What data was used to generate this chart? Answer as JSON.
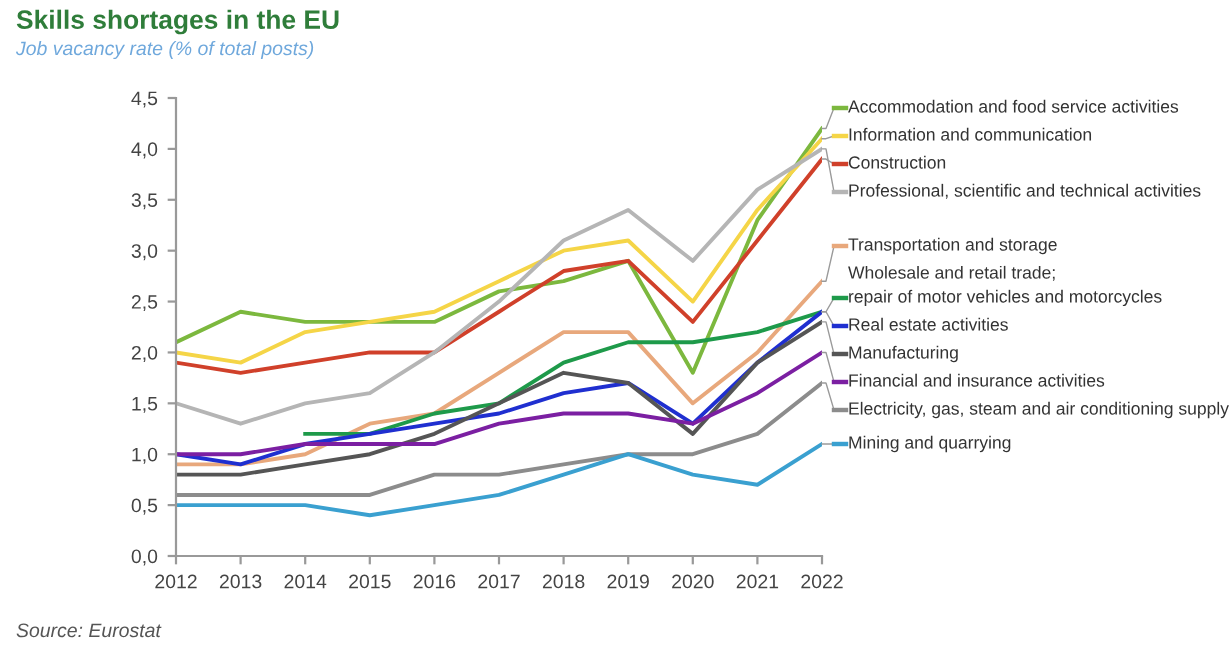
{
  "chart_data": {
    "type": "line",
    "title": "Skills shortages in the EU",
    "subtitle": "Job vacancy rate (% of total posts)",
    "categories": [
      "2012",
      "2013",
      "2014",
      "2015",
      "2016",
      "2017",
      "2018",
      "2019",
      "2020",
      "2021",
      "2022"
    ],
    "ylim": [
      0,
      4.5
    ],
    "yticks": [
      {
        "value": 0,
        "label": "0,0"
      },
      {
        "value": 0.5,
        "label": "0,5"
      },
      {
        "value": 1,
        "label": "1,0"
      },
      {
        "value": 1.5,
        "label": "1,5"
      },
      {
        "value": 2,
        "label": "2,0"
      },
      {
        "value": 2.5,
        "label": "2,5"
      },
      {
        "value": 3,
        "label": "3,0"
      },
      {
        "value": 3.5,
        "label": "3,5"
      },
      {
        "value": 4,
        "label": "4,0"
      },
      {
        "value": 4.5,
        "label": "4,5"
      }
    ],
    "grid": false,
    "legend": "right",
    "marker": "none",
    "line_style": "solid",
    "series": [
      {
        "name": "Accommodation and food service activities",
        "color": "#7cb83e",
        "values": [
          2.1,
          2.4,
          2.3,
          2.3,
          2.3,
          2.6,
          2.7,
          2.9,
          1.8,
          3.3,
          4.2
        ]
      },
      {
        "name": "Information and communication",
        "color": "#f5d547",
        "values": [
          2.0,
          1.9,
          2.2,
          2.3,
          2.4,
          2.7,
          3.0,
          3.1,
          2.5,
          3.4,
          4.1
        ]
      },
      {
        "name": "Construction",
        "color": "#d0402a",
        "values": [
          1.9,
          1.8,
          1.9,
          2.0,
          2.0,
          2.4,
          2.8,
          2.9,
          2.3,
          3.1,
          3.9
        ]
      },
      {
        "name": "Professional, scientific and technical activities",
        "color": "#b5b5b5",
        "values": [
          1.5,
          1.3,
          1.5,
          1.6,
          2.0,
          2.5,
          3.1,
          3.4,
          2.9,
          3.6,
          4.0
        ]
      },
      {
        "name": "Transportation and storage",
        "color": "#e8a87c",
        "values": [
          0.9,
          0.9,
          1.0,
          1.3,
          1.4,
          1.8,
          2.2,
          2.2,
          1.5,
          2.0,
          2.7
        ]
      },
      {
        "name": "Wholesale and retail trade;\nrepair of motor vehicles and motorcycles",
        "color": "#1e9a4a",
        "values": [
          null,
          null,
          1.2,
          1.2,
          1.4,
          1.5,
          1.9,
          2.1,
          2.1,
          2.2,
          2.4
        ]
      },
      {
        "name": "Real estate activities",
        "color": "#1f2fd0",
        "values": [
          1.0,
          0.9,
          1.1,
          1.2,
          1.3,
          1.4,
          1.6,
          1.7,
          1.3,
          1.9,
          2.4
        ]
      },
      {
        "name": "Manufacturing",
        "color": "#555555",
        "values": [
          0.8,
          0.8,
          0.9,
          1.0,
          1.2,
          1.5,
          1.8,
          1.7,
          1.2,
          1.9,
          2.3
        ]
      },
      {
        "name": "Financial and insurance activities",
        "color": "#7b1fa2",
        "values": [
          1.0,
          1.0,
          1.1,
          1.1,
          1.1,
          1.3,
          1.4,
          1.4,
          1.3,
          1.6,
          2.0
        ]
      },
      {
        "name": "Electricity, gas, steam and air conditioning supply",
        "color": "#8c8c8c",
        "values": [
          0.6,
          0.6,
          0.6,
          0.6,
          0.8,
          0.8,
          0.9,
          1.0,
          1.0,
          1.2,
          1.7
        ]
      },
      {
        "name": "Mining and quarrying",
        "color": "#3aa0d0",
        "values": [
          0.5,
          0.5,
          0.5,
          0.4,
          0.5,
          0.6,
          0.8,
          1.0,
          0.8,
          0.7,
          1.1
        ]
      }
    ],
    "annotations": [
      "Source: Eurostat"
    ]
  }
}
